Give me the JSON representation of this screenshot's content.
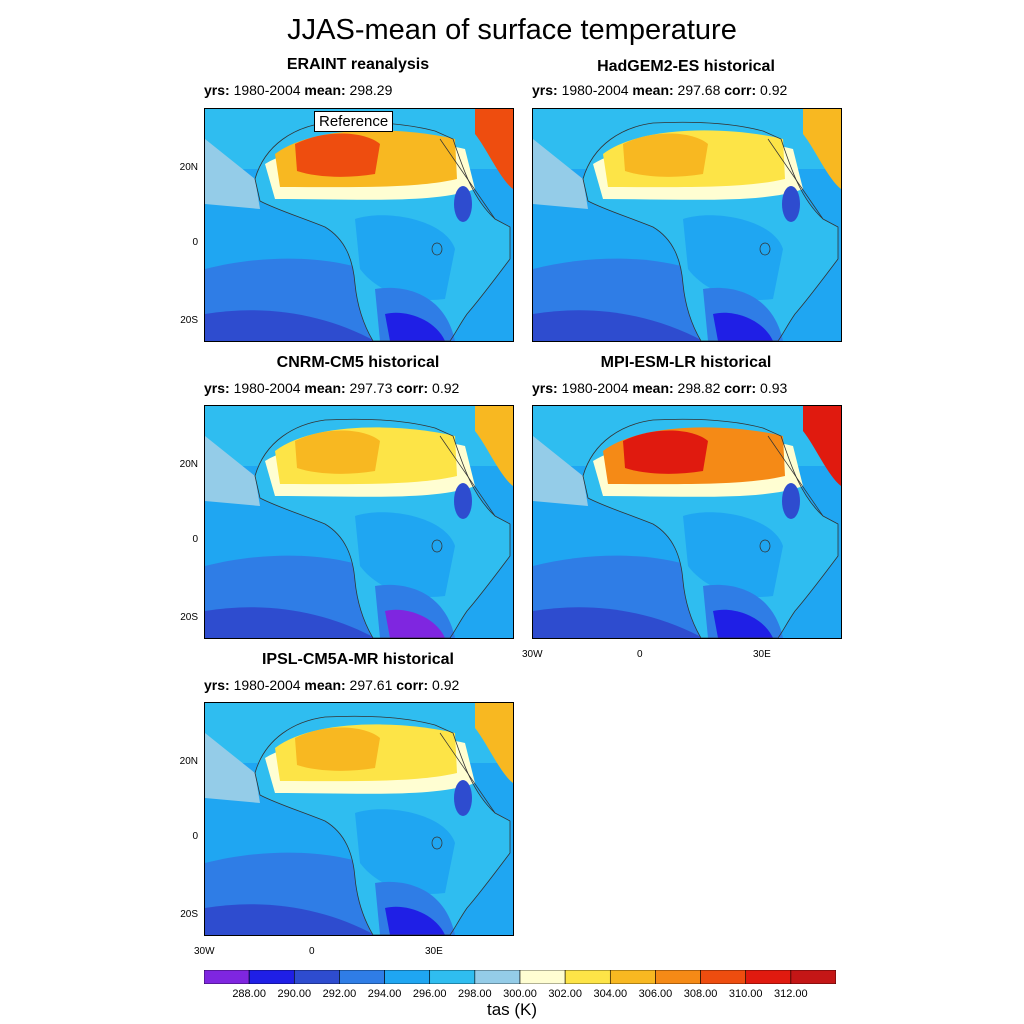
{
  "figure": {
    "title": "JJAS-mean of surface temperature",
    "units_label": "tas (K)"
  },
  "colors": {
    "levels": [
      "#7f26e0",
      "#1f1fe6",
      "#2e4ccf",
      "#2f7de6",
      "#1fa6f2",
      "#2fbdf0",
      "#94cce8",
      "#fffed2",
      "#fde447",
      "#f8b821",
      "#f58a16",
      "#ee4d0f",
      "#e01a0f",
      "#c41616"
    ]
  },
  "panels": [
    {
      "title": "ERAINT reanalysis",
      "yrs_label": "yrs:",
      "yrs": "1980-2004",
      "mean_label": "mean:",
      "mean": "298.29",
      "corr_label": "",
      "corr": "",
      "reference_label": "Reference",
      "style": "era"
    },
    {
      "title": "HadGEM2-ES historical",
      "yrs_label": "yrs:",
      "yrs": "1980-2004",
      "mean_label": "mean:",
      "mean": "297.68",
      "corr_label": "corr:",
      "corr": "0.92",
      "style": "had"
    },
    {
      "title": "CNRM-CM5 historical",
      "yrs_label": "yrs:",
      "yrs": "1980-2004",
      "mean_label": "mean:",
      "mean": "297.73",
      "corr_label": "corr:",
      "corr": "0.92",
      "style": "cnrm"
    },
    {
      "title": "MPI-ESM-LR historical",
      "yrs_label": "yrs:",
      "yrs": "1980-2004",
      "mean_label": "mean:",
      "mean": "298.82",
      "corr_label": "corr:",
      "corr": "0.93",
      "style": "mpi"
    },
    {
      "title": "IPSL-CM5A-MR historical",
      "yrs_label": "yrs:",
      "yrs": "1980-2004",
      "mean_label": "mean:",
      "mean": "297.61",
      "corr_label": "corr:",
      "corr": "0.92",
      "style": "ipsl"
    }
  ],
  "chart_data": {
    "type": "heatmap",
    "title": "JJAS-mean of surface temperature",
    "variable": "tas (K)",
    "lon_ticks": [
      "30W",
      "0",
      "30E"
    ],
    "lat_ticks": [
      "20N",
      "0",
      "20S"
    ],
    "colorbar_labels": [
      "288.00",
      "290.00",
      "292.00",
      "294.00",
      "296.00",
      "298.00",
      "300.00",
      "302.00",
      "304.00",
      "306.00",
      "308.00",
      "310.00",
      "312.00"
    ],
    "series": [
      {
        "name": "ERAINT reanalysis",
        "years": "1980-2004",
        "mean": 298.29,
        "reference": true
      },
      {
        "name": "HadGEM2-ES historical",
        "years": "1980-2004",
        "mean": 297.68,
        "corr": 0.92
      },
      {
        "name": "CNRM-CM5 historical",
        "years": "1980-2004",
        "mean": 297.73,
        "corr": 0.92
      },
      {
        "name": "MPI-ESM-LR historical",
        "years": "1980-2004",
        "mean": 298.82,
        "corr": 0.93
      },
      {
        "name": "IPSL-CM5A-MR historical",
        "years": "1980-2004",
        "mean": 297.61,
        "corr": 0.92
      }
    ]
  }
}
